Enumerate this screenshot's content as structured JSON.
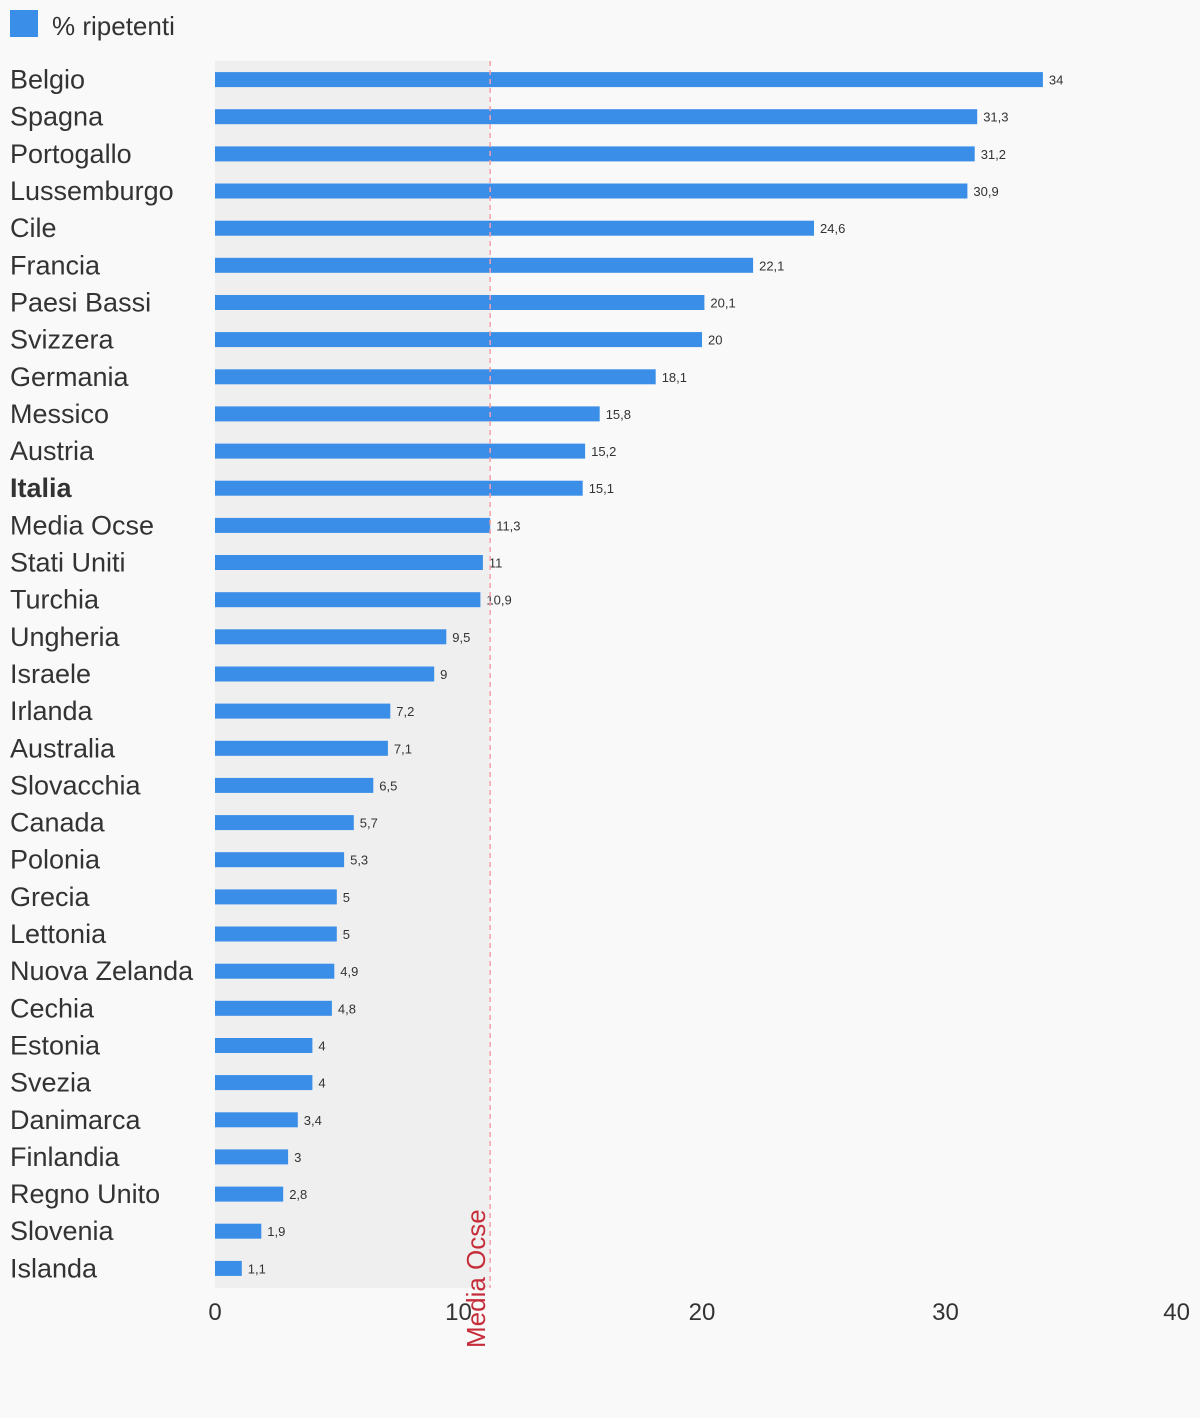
{
  "chart_data": {
    "type": "bar",
    "orientation": "horizontal",
    "legend": {
      "label": "% ripetenti",
      "position": "top-left"
    },
    "categories": [
      "Belgio",
      "Spagna",
      "Portogallo",
      "Lussemburgo",
      "Cile",
      "Francia",
      "Paesi Bassi",
      "Svizzera",
      "Germania",
      "Messico",
      "Austria",
      "Italia",
      "Media Ocse",
      "Stati Uniti",
      "Turchia",
      "Ungheria",
      "Israele",
      "Irlanda",
      "Australia",
      "Slovacchia",
      "Canada",
      "Polonia",
      "Grecia",
      "Lettonia",
      "Nuova Zelanda",
      "Cechia",
      "Estonia",
      "Svezia",
      "Danimarca",
      "Finlandia",
      "Regno Unito",
      "Slovenia",
      "Islanda"
    ],
    "series": [
      {
        "name": "% ripetenti",
        "values": [
          34,
          31.3,
          31.2,
          30.9,
          24.6,
          22.1,
          20.1,
          20,
          18.1,
          15.8,
          15.2,
          15.1,
          11.3,
          11,
          10.9,
          9.5,
          9,
          7.2,
          7.1,
          6.5,
          5.7,
          5.3,
          5,
          5,
          4.9,
          4.8,
          4,
          4,
          3.4,
          3,
          2.8,
          1.9,
          1.1
        ],
        "labels": [
          "34",
          "31,3",
          "31,2",
          "30,9",
          "24,6",
          "22,1",
          "20,1",
          "20",
          "18,1",
          "15,8",
          "15,2",
          "15,1",
          "11,3",
          "11",
          "10,9",
          "9,5",
          "9",
          "7,2",
          "7,1",
          "6,5",
          "5,7",
          "5,3",
          "5",
          "5",
          "4,9",
          "4,8",
          "4",
          "4",
          "3,4",
          "3",
          "2,8",
          "1,9",
          "1,1"
        ],
        "color": "#3a8ee8"
      }
    ],
    "highlight_category": "Italia",
    "xlim": [
      0,
      40
    ],
    "xticks": [
      0,
      10,
      20,
      30,
      40
    ],
    "xtick_labels": [
      "0",
      "10",
      "20",
      "30",
      "40"
    ],
    "reference_line": {
      "value": 11.3,
      "label": "Media Ocse",
      "color": "#c62d3a"
    },
    "shaded_band": {
      "from": 0,
      "to": 11.3,
      "color": "#efefef"
    },
    "grid": false
  }
}
